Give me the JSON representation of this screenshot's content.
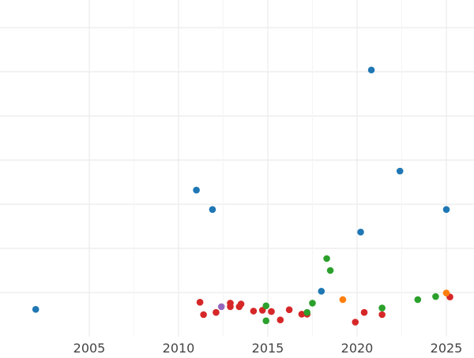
{
  "chart_data": {
    "type": "scatter",
    "title": "",
    "xlabel": "",
    "ylabel": "",
    "xlim": [
      1999.0,
      2026.4
    ],
    "ylim": [
      0,
      8
    ],
    "grid": true,
    "x_ticks": [
      2005,
      2010,
      2015,
      2020,
      2025
    ],
    "x_tick_labels": [
      "2005",
      "2010",
      "2015",
      "2020",
      "2025"
    ],
    "y_gridlines": [
      1,
      2,
      3,
      4,
      5,
      6,
      7
    ],
    "colors": {
      "blue": "#1f77b4",
      "red": "#d62728",
      "green": "#2ca02c",
      "orange": "#ff7f0e",
      "purple": "#9467bd",
      "grid": "#ebebeb",
      "tick_label": "#444444"
    },
    "series": [
      {
        "color": "blue",
        "points": [
          {
            "x": 2002.0,
            "y": 0.62
          },
          {
            "x": 2011.0,
            "y": 3.32
          },
          {
            "x": 2011.9,
            "y": 2.88
          },
          {
            "x": 2018.0,
            "y": 1.03
          },
          {
            "x": 2020.2,
            "y": 2.37
          },
          {
            "x": 2020.8,
            "y": 6.04
          },
          {
            "x": 2022.4,
            "y": 3.75
          },
          {
            "x": 2025.0,
            "y": 2.88
          }
        ]
      },
      {
        "color": "red",
        "points": [
          {
            "x": 2011.2,
            "y": 0.78
          },
          {
            "x": 2011.4,
            "y": 0.5
          },
          {
            "x": 2012.1,
            "y": 0.55
          },
          {
            "x": 2012.9,
            "y": 0.68
          },
          {
            "x": 2012.9,
            "y": 0.76
          },
          {
            "x": 2013.4,
            "y": 0.68
          },
          {
            "x": 2013.5,
            "y": 0.74
          },
          {
            "x": 2014.2,
            "y": 0.58
          },
          {
            "x": 2014.7,
            "y": 0.6
          },
          {
            "x": 2015.2,
            "y": 0.57
          },
          {
            "x": 2015.7,
            "y": 0.38
          },
          {
            "x": 2016.2,
            "y": 0.61
          },
          {
            "x": 2016.9,
            "y": 0.51
          },
          {
            "x": 2017.2,
            "y": 0.51
          },
          {
            "x": 2019.9,
            "y": 0.33
          },
          {
            "x": 2020.4,
            "y": 0.55
          },
          {
            "x": 2021.4,
            "y": 0.5
          },
          {
            "x": 2025.2,
            "y": 0.9
          }
        ]
      },
      {
        "color": "green",
        "points": [
          {
            "x": 2014.9,
            "y": 0.7
          },
          {
            "x": 2014.9,
            "y": 0.36
          },
          {
            "x": 2017.2,
            "y": 0.55
          },
          {
            "x": 2017.5,
            "y": 0.76
          },
          {
            "x": 2018.3,
            "y": 1.77
          },
          {
            "x": 2018.5,
            "y": 1.5
          },
          {
            "x": 2021.4,
            "y": 0.65
          },
          {
            "x": 2023.4,
            "y": 0.84
          },
          {
            "x": 2024.4,
            "y": 0.91
          }
        ]
      },
      {
        "color": "orange",
        "points": [
          {
            "x": 2019.2,
            "y": 0.84
          },
          {
            "x": 2025.0,
            "y": 0.99
          }
        ]
      },
      {
        "color": "purple",
        "points": [
          {
            "x": 2012.4,
            "y": 0.68
          }
        ]
      }
    ]
  }
}
